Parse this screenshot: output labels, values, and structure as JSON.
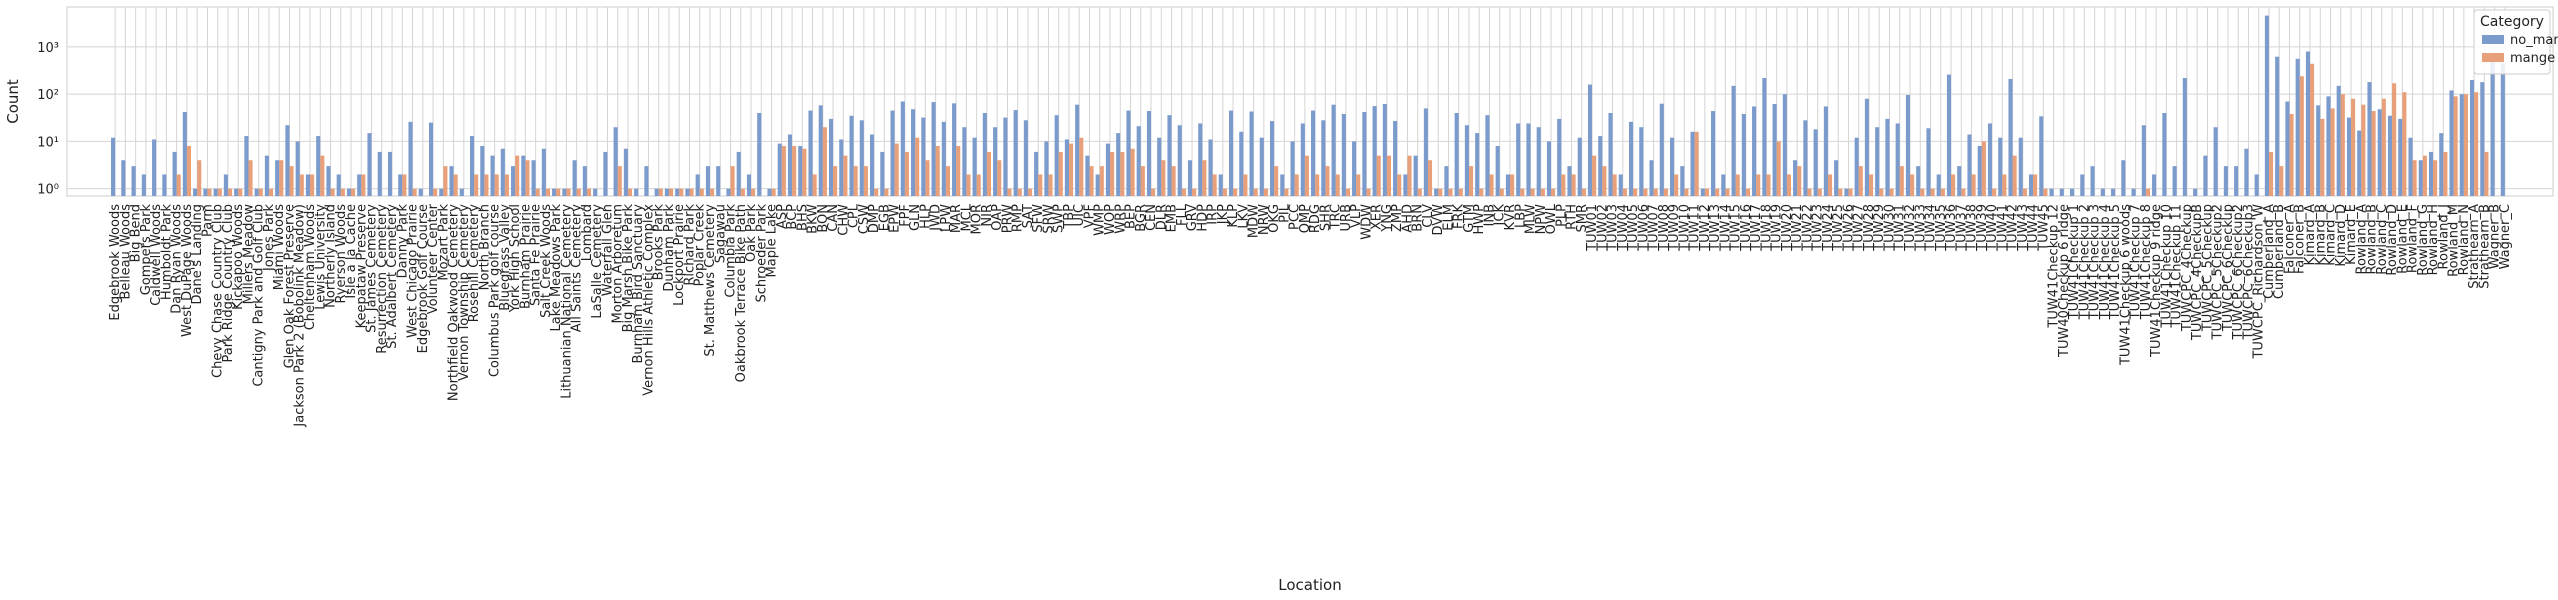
{
  "chart_data": {
    "type": "bar",
    "xlabel": "Location",
    "ylabel": "Count",
    "y_scale": "log",
    "ylim": [
      0.7,
      7000
    ],
    "y_ticks": [
      1,
      10,
      100,
      1000
    ],
    "y_tick_labels": [
      "10⁰",
      "10¹",
      "10²",
      "10³"
    ],
    "grid": true,
    "legend_placement": "top-right",
    "legend_title": "Category",
    "colors": {
      "no_mange": "#7b9bcd",
      "mange": "#e8a07a",
      "grid": "#d4d4d4"
    },
    "categories": [
      "Edgebrook Woods",
      "Belleau Woods",
      "Big Bend",
      "Gompers Park",
      "Caldwell Woods",
      "Humboldt Park",
      "Dan Ryan Woods",
      "West DuPage Woods",
      "Dane's Landing",
      "Parm",
      "Chevy Chase Country Club",
      "Park Ridge Country Club",
      "Kickapoo Woods",
      "Millers Meadow",
      "Cantigny Park and Golf Club",
      "Jones Park",
      "Miami Woods",
      "Glen Oak Forest Preserve",
      "Jackson Park 2 (Bobolink Meadow)",
      "Cheltenham Woods",
      "Lewis University",
      "Northerly Island",
      "Ryerson Woods",
      "Isle a la Cache",
      "Keepataw Preserve",
      "St. James Cemetery",
      "Resurrection Cemetery",
      "St. Adalbert Cemetery",
      "Danny Park",
      "West Chicago Prairie",
      "Edgebrook Golf Course",
      "Volunteer Center",
      "Mozart Park",
      "Northfield Oakwood Cemetery",
      "Vernon Township Cemetery",
      "Rosehill Cemetery",
      "North Branch",
      "Columbus Park golf course",
      "Bluegrass Valley",
      "York High School",
      "Burnham Prairie",
      "Santa Fe Prairie",
      "Salt Creek Woods",
      "Lake Meadows Park",
      "Lithuanian National Cemetery",
      "All Saints Cemetery",
      "Lombard",
      "LaSalle Cemetery",
      "Waterfall Glen",
      "Morton Arboretum",
      "Big Marsh Bike Park",
      "Burnham Bird Sanctuary",
      "Vernon Hills Athletic Complex",
      "Brooks Park",
      "Dunham Park",
      "Lockport Prairie",
      "Richard Park",
      "Poplar Creek",
      "St. Matthews Cemetery",
      "Sagawau",
      "Columbia Park",
      "Oakbrook Terrace Bike Path",
      "Oak Park",
      "Schroeder Park",
      "Maple Lake",
      "ASP",
      "BCP",
      "BHS",
      "BKW",
      "BON",
      "CAN",
      "CHW",
      "CPL",
      "CSW",
      "DMP",
      "EGB",
      "EPW",
      "FPF",
      "GLN",
      "HLP",
      "JWD",
      "LPW",
      "MAR",
      "MCL",
      "MOR",
      "NIR",
      "OAP",
      "PRW",
      "RMP",
      "SAT",
      "SFW",
      "SRW",
      "SWP",
      "TBP",
      "UIC",
      "VPF",
      "WMP",
      "WOP",
      "WRP",
      "BEP",
      "BGR",
      "CEN",
      "DLR",
      "EMB",
      "FLL",
      "GRV",
      "HDP",
      "IRP",
      "JKP",
      "KLP",
      "LKV",
      "MDW",
      "NRW",
      "OKG",
      "PIL",
      "PCC",
      "QMP",
      "RDG",
      "SHR",
      "TRC",
      "URB",
      "VLP",
      "WDW",
      "XER",
      "YNG",
      "ZMP",
      "AHD",
      "BRN",
      "CLV",
      "DVW",
      "ELM",
      "FRK",
      "GTM",
      "HWP",
      "INB",
      "JCK",
      "KVR",
      "LBP",
      "MLW",
      "NPW",
      "OWL",
      "PLP",
      "RTH",
      "SMR",
      "TUW01",
      "TUW02",
      "TUW03",
      "TUW04",
      "TUW05",
      "TUW06",
      "TUW07",
      "TUW08",
      "TUW09",
      "TUW10",
      "TUW11",
      "TUW12",
      "TUW13",
      "TUW14",
      "TUW15",
      "TUW16",
      "TUW17",
      "TUW18",
      "TUW19",
      "TUW20",
      "TUW21",
      "TUW22",
      "TUW23",
      "TUW24",
      "TUW25",
      "TUW26",
      "TUW27",
      "TUW28",
      "TUW29",
      "TUW30",
      "TUW31",
      "TUW32",
      "TUW33",
      "TUW34",
      "TUW35",
      "TUW36",
      "TUW37",
      "TUW38",
      "TUW39",
      "TUW40",
      "TUW41",
      "TUW42",
      "TUW43",
      "TUW44",
      "TUW45",
      "TUW41Checkup 12",
      "TUW40Checkup 6 ridge",
      "TUW41Checkup 1",
      "TUW41Checkup 2",
      "TUW41Checkup 3",
      "TUW41Checkup 4",
      "TUW41Checkup 5",
      "TUW41Checkup 6 woods",
      "TUW41Checkup 7",
      "TUW41Checkup 8",
      "TUW41Checkup 9 ridge",
      "TUW41Checkup 10",
      "TUW41Checkup 11",
      "TUWCPC_4Checkup",
      "TUWCPC_4CheckupB",
      "TUWCPC_5Checkup",
      "TUWCPC_5Checkup2",
      "TUWCPC_6Checkup",
      "TUWCPC_6Checkup2",
      "TUWCPC_6Checkup3",
      "TUWCPC_Richardson_W",
      "Cumberland_A",
      "Cumberland_B",
      "Falconer_A",
      "Falconer_B",
      "Kimard_A",
      "Kimard_B",
      "Kimard_C",
      "Kimard_D",
      "Kimard_E",
      "Rowland_A",
      "Rowland_B",
      "Rowland_C",
      "Rowland_D",
      "Rowland_E",
      "Rowland_F",
      "Rowland_G",
      "Rowland_H",
      "Rowland_I",
      "Rowland_M",
      "Rowland_N",
      "Strathearn_A",
      "Strathearn_B",
      "Wagner_B",
      "Wagner_C"
    ],
    "series": [
      {
        "name": "no_mange",
        "values": [
          12,
          4,
          3,
          2,
          11,
          2,
          6,
          42,
          1,
          1,
          1,
          2,
          1,
          13,
          1,
          5,
          4,
          22,
          10,
          2,
          13,
          3,
          2,
          1,
          2,
          15,
          6,
          6,
          2,
          26,
          1,
          25,
          1,
          3,
          1,
          13,
          8,
          5,
          7,
          3,
          5,
          4,
          7,
          1,
          1,
          4,
          3,
          1,
          6,
          20,
          7,
          1,
          3,
          1,
          1,
          1,
          1,
          2,
          3,
          3,
          1,
          6,
          2,
          40,
          1,
          9,
          14,
          8,
          45,
          58,
          30,
          11,
          35,
          28,
          14,
          6,
          45,
          70,
          48,
          32,
          68,
          26,
          64,
          20,
          12,
          40,
          20,
          32,
          46,
          28,
          6,
          10,
          36,
          11,
          60,
          5,
          2,
          9,
          15,
          45,
          21,
          44,
          12,
          36,
          22,
          4,
          24,
          11,
          2,
          45,
          16,
          43,
          12,
          27,
          2,
          10,
          24,
          45,
          28,
          60,
          38,
          10,
          42,
          56,
          62,
          27,
          2,
          5,
          50,
          1,
          3,
          40,
          22,
          15,
          36,
          8,
          2,
          24,
          24,
          20,
          10,
          30,
          3,
          12,
          160,
          13,
          40,
          2,
          26,
          20,
          4,
          63,
          12,
          3,
          16,
          1,
          44,
          2,
          150,
          38,
          55,
          220,
          62,
          100,
          4,
          28,
          18,
          55,
          4,
          1,
          12,
          80,
          20,
          30,
          24,
          96,
          3,
          19,
          2,
          260,
          3,
          14,
          8,
          24,
          12,
          210,
          12,
          2,
          34,
          1,
          1,
          1,
          2,
          3,
          1,
          1,
          4,
          1,
          22,
          2,
          40,
          3,
          220,
          1,
          5,
          20,
          3,
          3,
          7,
          2,
          4600,
          620,
          70,
          560,
          800,
          58,
          90,
          150,
          32,
          17,
          180,
          48,
          35,
          30,
          12,
          4,
          6,
          15,
          120,
          100,
          200,
          180,
          500,
          450
        ]
      },
      {
        "name": "mange",
        "values": [
          0,
          0,
          0,
          0,
          0,
          0,
          2,
          8,
          4,
          1,
          1,
          1,
          1,
          4,
          1,
          1,
          4,
          3,
          2,
          2,
          5,
          1,
          1,
          1,
          2,
          0,
          0,
          0,
          2,
          1,
          0,
          1,
          3,
          2,
          0,
          2,
          2,
          2,
          2,
          5,
          4,
          1,
          1,
          1,
          1,
          1,
          1,
          0,
          0,
          3,
          1,
          0,
          0,
          1,
          1,
          1,
          1,
          1,
          1,
          0,
          3,
          1,
          1,
          0,
          1,
          8,
          8,
          7,
          2,
          20,
          3,
          5,
          3,
          3,
          1,
          1,
          9,
          6,
          12,
          4,
          8,
          3,
          8,
          2,
          2,
          6,
          4,
          1,
          1,
          1,
          2,
          2,
          6,
          9,
          12,
          3,
          3,
          6,
          6,
          7,
          3,
          1,
          4,
          3,
          1,
          1,
          4,
          2,
          1,
          1,
          2,
          1,
          1,
          3,
          1,
          2,
          5,
          2,
          3,
          2,
          1,
          2,
          1,
          5,
          5,
          2,
          5,
          1,
          4,
          1,
          1,
          1,
          3,
          1,
          2,
          1,
          2,
          1,
          1,
          1,
          1,
          2,
          2,
          1,
          5,
          3,
          2,
          1,
          1,
          1,
          1,
          1,
          2,
          1,
          16,
          1,
          1,
          1,
          2,
          1,
          2,
          2,
          10,
          2,
          3,
          1,
          1,
          2,
          1,
          1,
          3,
          2,
          1,
          1,
          3,
          2,
          1,
          1,
          1,
          2,
          1,
          2,
          10,
          1,
          2,
          5,
          1,
          2,
          1,
          0,
          0,
          0,
          0,
          0,
          0,
          0,
          0,
          0,
          1,
          0,
          0,
          0,
          0,
          0,
          0,
          0,
          0,
          0,
          0,
          0,
          6,
          3,
          38,
          240,
          440,
          30,
          50,
          100,
          80,
          60,
          44,
          80,
          170,
          110,
          4,
          5,
          4,
          6,
          90,
          100,
          110,
          6,
          0,
          0
        ]
      }
    ]
  },
  "axes": {
    "xlabel": "Location",
    "ylabel": "Count"
  },
  "legend": {
    "title": "Category",
    "items": [
      {
        "label": "no_mange",
        "color": "#7b9bcd"
      },
      {
        "label": "mange",
        "color": "#e8a07a"
      }
    ]
  }
}
